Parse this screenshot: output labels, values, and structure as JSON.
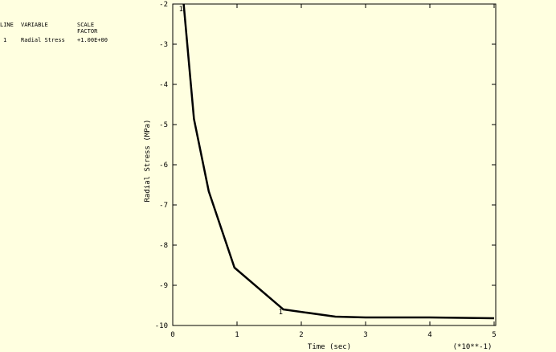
{
  "chart_data": {
    "type": "line",
    "legend_table": {
      "header": [
        "LINE",
        "VARIABLE",
        "SCALE FACTOR"
      ],
      "rows": [
        [
          "1",
          "Radial Stress",
          "+1.00E+00"
        ]
      ]
    },
    "x_label": "Time (sec)",
    "x_multiplier": "(*10**-1)",
    "y_label": "Radial Stress (MPa)",
    "x": [
      0.17,
      0.33,
      0.56,
      0.96,
      1.72,
      2.53,
      3.0,
      4.0,
      5.0
    ],
    "series": [
      {
        "name": "Radial Stress",
        "color": "#000000",
        "values": [
          -2.0,
          -4.86,
          -6.66,
          -8.56,
          -9.6,
          -9.78,
          -9.8,
          -9.8,
          -9.82
        ]
      }
    ],
    "xlim": [
      0,
      5
    ],
    "xticks": [
      0,
      1,
      2,
      3,
      4,
      5
    ],
    "ylim": [
      -10,
      -2
    ],
    "yticks": [
      -2,
      -3,
      -4,
      -5,
      -6,
      -7,
      -8,
      -9,
      -10
    ],
    "background": "#ffffe0"
  }
}
